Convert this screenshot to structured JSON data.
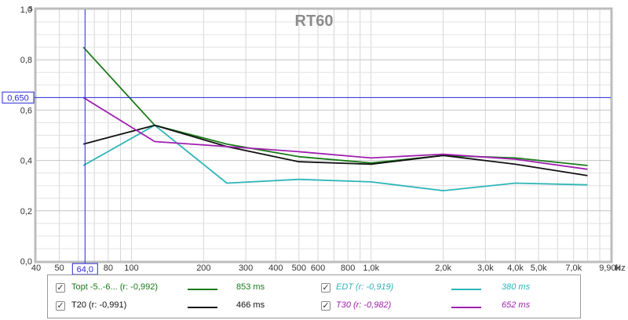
{
  "chart_data": {
    "type": "line",
    "title": "RT60",
    "corner_label": "s",
    "x_unit": "Hz",
    "x_scale": "log",
    "xlim": [
      40,
      10000
    ],
    "ylim": [
      0,
      1
    ],
    "grid": true,
    "x_ticks": [
      {
        "value": 40,
        "label": "40"
      },
      {
        "value": 50,
        "label": "50"
      },
      {
        "value": 60,
        "label": "60"
      },
      {
        "value": 80,
        "label": "80"
      },
      {
        "value": 100,
        "label": "100"
      },
      {
        "value": 200,
        "label": "200"
      },
      {
        "value": 300,
        "label": "300"
      },
      {
        "value": 400,
        "label": "400"
      },
      {
        "value": 500,
        "label": "500"
      },
      {
        "value": 600,
        "label": "600"
      },
      {
        "value": 800,
        "label": "800"
      },
      {
        "value": 1000,
        "label": "1,0k"
      },
      {
        "value": 2000,
        "label": "2,0k"
      },
      {
        "value": 3000,
        "label": "3,0k"
      },
      {
        "value": 4000,
        "label": "4,0k"
      },
      {
        "value": 5000,
        "label": "5,0k"
      },
      {
        "value": 7000,
        "label": "7,0k"
      },
      {
        "value": 9900,
        "label": "9,90k"
      }
    ],
    "y_ticks": [
      {
        "value": 0,
        "label": "0,0"
      },
      {
        "value": 0.2,
        "label": "0,2"
      },
      {
        "value": 0.4,
        "label": "0,4"
      },
      {
        "value": 0.6,
        "label": "0,6"
      },
      {
        "value": 0.8,
        "label": "0,8"
      },
      {
        "value": 1.0,
        "label": "1,0"
      }
    ],
    "x": [
      63,
      125,
      250,
      500,
      1000,
      2000,
      4000,
      8000
    ],
    "series": [
      {
        "key": "topt",
        "name": "Topt -5..-6... (r: -0,992)",
        "value_label": "853 ms",
        "color": "#1a7a1a",
        "italic": false,
        "values": [
          0.85,
          0.54,
          0.465,
          0.415,
          0.39,
          0.42,
          0.41,
          0.38
        ]
      },
      {
        "key": "edt",
        "name": "EDT (r: -0,919)",
        "value_label": "380 ms",
        "color": "#2eb5b8",
        "italic": true,
        "values": [
          0.38,
          0.54,
          0.31,
          0.325,
          0.315,
          0.28,
          0.31,
          0.303
        ]
      },
      {
        "key": "t20",
        "name": "T20 (r: -0,991)",
        "value_label": "466 ms",
        "color": "#111111",
        "italic": false,
        "values": [
          0.465,
          0.54,
          0.455,
          0.395,
          0.385,
          0.42,
          0.385,
          0.34
        ]
      },
      {
        "key": "t30",
        "name": "T30 (r: -0,982)",
        "value_label": "652 ms",
        "color": "#a020b0",
        "italic": true,
        "values": [
          0.65,
          0.475,
          0.455,
          0.435,
          0.41,
          0.425,
          0.405,
          0.365
        ]
      }
    ],
    "cursor": {
      "x_value": 64,
      "x_label": "64,0",
      "y_value": 0.65,
      "y_label": "0,650"
    },
    "legend": {
      "placement": "bottom",
      "checked": true
    }
  }
}
